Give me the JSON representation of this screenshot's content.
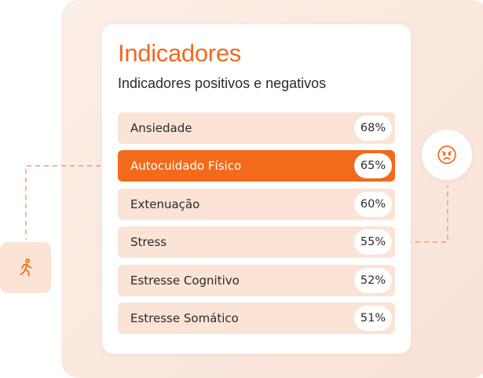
{
  "card": {
    "title": "Indicadores",
    "subtitle": "Indicadores positivos e negativos"
  },
  "indicators": [
    {
      "label": "Ansiedade",
      "value": "68%"
    },
    {
      "label": "Autocuidado Físico",
      "value": "65%",
      "active": true
    },
    {
      "label": "Extenuação",
      "value": "60%"
    },
    {
      "label": "Stress",
      "value": "55%"
    },
    {
      "label": "Estresse Cognitivo",
      "value": "52%"
    },
    {
      "label": "Estresse Somático",
      "value": "51%"
    }
  ],
  "icons": {
    "left": "person-walking-icon",
    "right": "angry-face-icon"
  },
  "colors": {
    "accent": "#f26a1b",
    "row_bg": "#fbe3d6",
    "backdrop": "#fbeee6"
  }
}
